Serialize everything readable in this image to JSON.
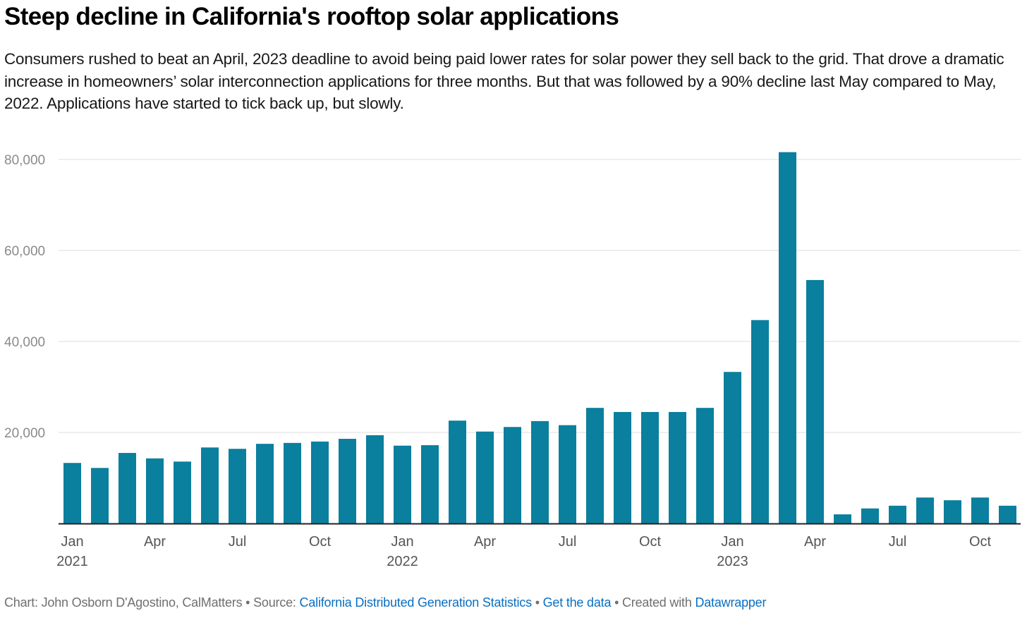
{
  "header": {
    "title": "Steep decline in California's rooftop solar applications",
    "subtitle": "Consumers rushed to beat an April, 2023 deadline to avoid being paid lower rates for solar power they sell back to the grid. That drove a dramatic increase in homeowners’ solar interconnection applications for three months. But that was followed by a 90% decline last May compared to May, 2022. Applications have started to tick back up, but slowly."
  },
  "chart_data": {
    "type": "bar",
    "title": "Steep decline in California's rooftop solar applications",
    "xlabel": "",
    "ylabel": "",
    "ylim": [
      0,
      80000
    ],
    "yticks": [
      20000,
      40000,
      60000,
      80000
    ],
    "ytick_labels": [
      "20,000",
      "40,000",
      "60,000",
      "80,000"
    ],
    "grid": true,
    "bar_color": "#0a7f9e",
    "categories": [
      "Jan 2021",
      "Feb 2021",
      "Mar 2021",
      "Apr 2021",
      "May 2021",
      "Jun 2021",
      "Jul 2021",
      "Aug 2021",
      "Sep 2021",
      "Oct 2021",
      "Nov 2021",
      "Dec 2021",
      "Jan 2022",
      "Feb 2022",
      "Mar 2022",
      "Apr 2022",
      "May 2022",
      "Jun 2022",
      "Jul 2022",
      "Aug 2022",
      "Sep 2022",
      "Oct 2022",
      "Nov 2022",
      "Dec 2022",
      "Jan 2023",
      "Feb 2023",
      "Mar 2023",
      "Apr 2023",
      "May 2023",
      "Jun 2023",
      "Jul 2023",
      "Aug 2023",
      "Sep 2023",
      "Oct 2023",
      "Nov 2023"
    ],
    "values": [
      13300,
      12200,
      15500,
      14300,
      13600,
      16700,
      16400,
      17500,
      17700,
      18000,
      18600,
      19400,
      17100,
      17200,
      22600,
      20200,
      21200,
      22500,
      21600,
      25400,
      24500,
      24500,
      24500,
      25400,
      33300,
      44700,
      81600,
      53500,
      2000,
      3300,
      3900,
      5700,
      5100,
      5700,
      3900
    ],
    "xticks": [
      {
        "index": 0,
        "label": "Jan",
        "year": "2021"
      },
      {
        "index": 3,
        "label": "Apr",
        "year": ""
      },
      {
        "index": 6,
        "label": "Jul",
        "year": ""
      },
      {
        "index": 9,
        "label": "Oct",
        "year": ""
      },
      {
        "index": 12,
        "label": "Jan",
        "year": "2022"
      },
      {
        "index": 15,
        "label": "Apr",
        "year": ""
      },
      {
        "index": 18,
        "label": "Jul",
        "year": ""
      },
      {
        "index": 21,
        "label": "Oct",
        "year": ""
      },
      {
        "index": 24,
        "label": "Jan",
        "year": "2023"
      },
      {
        "index": 27,
        "label": "Apr",
        "year": ""
      },
      {
        "index": 30,
        "label": "Jul",
        "year": ""
      },
      {
        "index": 33,
        "label": "Oct",
        "year": ""
      }
    ]
  },
  "footer": {
    "credit": "Chart: John Osborn D'Agostino, CalMatters • Source: ",
    "source_link": "California Distributed Generation Statistics",
    "sep1": " • ",
    "data_link": "Get the data",
    "sep2": " • Created with ",
    "tool_link": "Datawrapper"
  }
}
